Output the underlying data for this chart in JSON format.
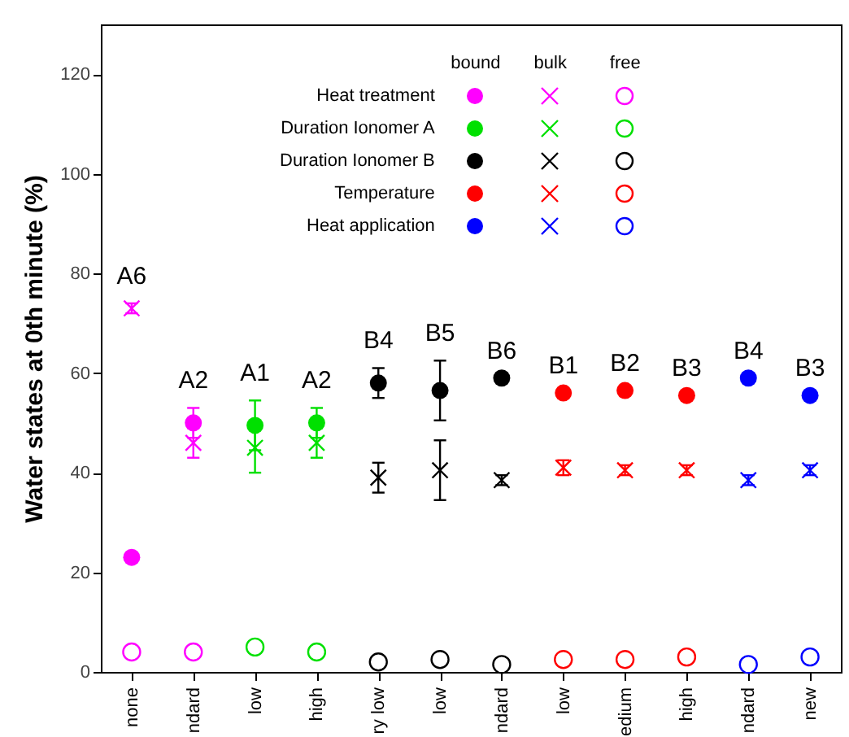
{
  "chart_data": {
    "type": "scatter",
    "ylabel": "Water states at 0th minute (%)",
    "categories": [
      "none",
      "ndard",
      "low",
      "high",
      "ry low",
      "low",
      "ndard",
      "low",
      "edium",
      "high",
      "ndard",
      "new"
    ],
    "ylim": [
      0,
      130
    ],
    "yticks": [
      0,
      20,
      40,
      60,
      80,
      100,
      120
    ],
    "grid": false,
    "legend": "top",
    "series": [
      {
        "name": "Heat treatment",
        "color": "#ff00ff",
        "marker": "circle",
        "values": [
          23,
          50,
          null,
          null,
          null,
          null,
          null,
          null,
          null,
          null,
          null,
          null
        ],
        "errors": [
          null,
          3,
          null,
          null,
          null,
          null,
          null,
          null,
          null,
          null,
          null,
          null
        ]
      },
      {
        "color": "#ff00ff",
        "marker": "cross",
        "values": [
          73,
          46,
          null,
          null,
          null,
          null,
          null,
          null,
          null,
          null,
          null,
          null
        ],
        "errors": [
          1,
          3,
          null,
          null,
          null,
          null,
          null,
          null,
          null,
          null,
          null,
          null
        ]
      },
      {
        "color": "#ff00ff",
        "marker": "circle-open",
        "values": [
          4,
          4,
          null,
          null,
          null,
          null,
          null,
          null,
          null,
          null,
          null,
          null
        ]
      },
      {
        "name": "Duration Ionomer A",
        "color": "#00e000",
        "marker": "circle",
        "values": [
          null,
          null,
          49.5,
          50,
          null,
          null,
          null,
          null,
          null,
          null,
          null,
          null
        ],
        "errors": [
          null,
          null,
          5,
          3,
          null,
          null,
          null,
          null,
          null,
          null,
          null,
          null
        ]
      },
      {
        "color": "#00e000",
        "marker": "cross",
        "values": [
          null,
          null,
          45,
          46,
          null,
          null,
          null,
          null,
          null,
          null,
          null,
          null
        ],
        "errors": [
          null,
          null,
          5,
          3,
          null,
          null,
          null,
          null,
          null,
          null,
          null,
          null
        ]
      },
      {
        "color": "#00e000",
        "marker": "circle-open",
        "values": [
          null,
          null,
          5,
          4,
          null,
          null,
          null,
          null,
          null,
          null,
          null,
          null
        ]
      },
      {
        "name": "Duration Ionomer B",
        "color": "#000000",
        "marker": "circle",
        "values": [
          null,
          null,
          null,
          null,
          58,
          56.5,
          59,
          null,
          null,
          null,
          null,
          null
        ],
        "errors": [
          null,
          null,
          null,
          null,
          3,
          6,
          null,
          null,
          null,
          null,
          null,
          null
        ]
      },
      {
        "color": "#000000",
        "marker": "cross",
        "values": [
          null,
          null,
          null,
          null,
          39,
          40.5,
          38.5,
          null,
          null,
          null,
          null,
          null
        ],
        "errors": [
          null,
          null,
          null,
          null,
          3,
          6,
          1,
          null,
          null,
          null,
          null,
          null
        ]
      },
      {
        "color": "#000000",
        "marker": "circle-open",
        "values": [
          null,
          null,
          null,
          null,
          2,
          2.5,
          1.5,
          null,
          null,
          null,
          null,
          null
        ]
      },
      {
        "name": "Temperature",
        "color": "#ff0000",
        "marker": "circle",
        "values": [
          null,
          null,
          null,
          null,
          null,
          null,
          null,
          56,
          56.5,
          55.5,
          null,
          null
        ]
      },
      {
        "color": "#ff0000",
        "marker": "cross",
        "values": [
          null,
          null,
          null,
          null,
          null,
          null,
          null,
          41,
          40.5,
          40.5,
          null,
          null
        ],
        "errors": [
          null,
          null,
          null,
          null,
          null,
          null,
          null,
          1.5,
          1,
          1,
          null,
          null
        ]
      },
      {
        "color": "#ff0000",
        "marker": "circle-open",
        "values": [
          null,
          null,
          null,
          null,
          null,
          null,
          null,
          2.5,
          2.5,
          3,
          null,
          null
        ]
      },
      {
        "name": "Heat application",
        "color": "#0000ff",
        "marker": "circle",
        "values": [
          null,
          null,
          null,
          null,
          null,
          null,
          null,
          null,
          null,
          null,
          59,
          55.5
        ]
      },
      {
        "color": "#0000ff",
        "marker": "cross",
        "values": [
          null,
          null,
          null,
          null,
          null,
          null,
          null,
          null,
          null,
          null,
          38.5,
          40.5
        ],
        "errors": [
          null,
          null,
          null,
          null,
          null,
          null,
          null,
          null,
          null,
          null,
          1,
          1
        ]
      },
      {
        "color": "#0000ff",
        "marker": "circle-open",
        "values": [
          null,
          null,
          null,
          null,
          null,
          null,
          null,
          null,
          null,
          null,
          1.5,
          3
        ]
      }
    ],
    "annotations": [
      "bound",
      "bulk",
      "free",
      "A6",
      "A2",
      "A1",
      "A2",
      "B4",
      "B5",
      "B6",
      "B1",
      "B2",
      "B3",
      "B4",
      "B3"
    ]
  }
}
